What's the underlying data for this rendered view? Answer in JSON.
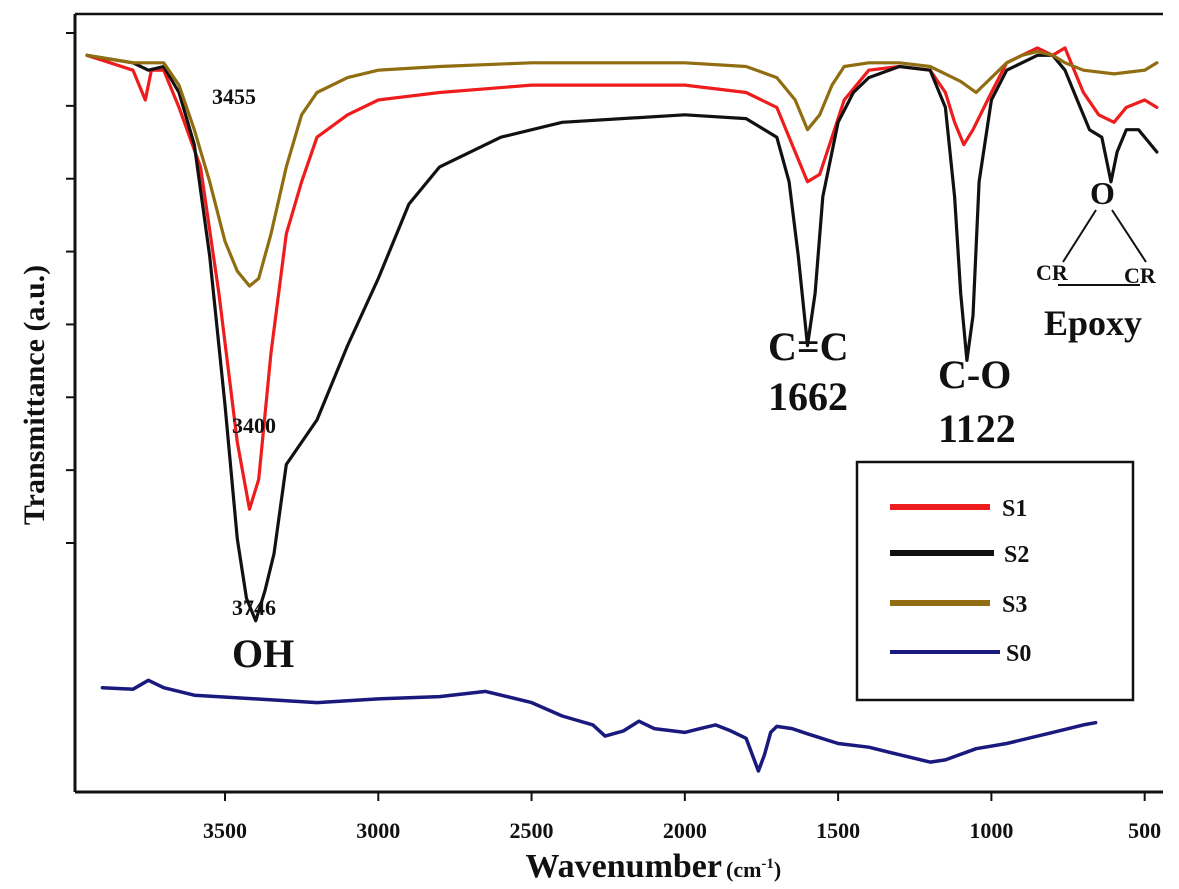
{
  "chart_data": {
    "type": "line",
    "xlabel": "Wavenumber",
    "xlabel_unit": "(cm",
    "xlabel_unit_sup": "-1",
    "xlabel_unit_close": ")",
    "ylabel": "Transmittance (a.u.)",
    "x_reversed": true,
    "xlim": [
      3950,
      450
    ],
    "ylim": [
      0,
      100
    ],
    "x_ticks": [
      3500,
      3000,
      2500,
      2000,
      1500,
      1000,
      500
    ],
    "y_tick_count": 8,
    "grid": false,
    "legend_position": "bottom-right",
    "series": [
      {
        "name": "S1",
        "color": "#ee1c1c",
        "points": [
          [
            3950,
            97
          ],
          [
            3800,
            95
          ],
          [
            3760,
            91
          ],
          [
            3740,
            95
          ],
          [
            3700,
            95
          ],
          [
            3650,
            90
          ],
          [
            3580,
            82
          ],
          [
            3520,
            65
          ],
          [
            3460,
            45
          ],
          [
            3420,
            36
          ],
          [
            3390,
            40
          ],
          [
            3350,
            57
          ],
          [
            3300,
            73
          ],
          [
            3250,
            80
          ],
          [
            3200,
            86
          ],
          [
            3100,
            89
          ],
          [
            3000,
            91
          ],
          [
            2800,
            92
          ],
          [
            2500,
            93
          ],
          [
            2000,
            93
          ],
          [
            1800,
            92
          ],
          [
            1700,
            90
          ],
          [
            1640,
            84
          ],
          [
            1600,
            80
          ],
          [
            1560,
            81
          ],
          [
            1520,
            86
          ],
          [
            1480,
            91
          ],
          [
            1400,
            95
          ],
          [
            1300,
            95.5
          ],
          [
            1200,
            95
          ],
          [
            1150,
            92
          ],
          [
            1120,
            88
          ],
          [
            1090,
            85
          ],
          [
            1060,
            87
          ],
          [
            1000,
            92
          ],
          [
            950,
            96
          ],
          [
            900,
            97
          ],
          [
            850,
            98
          ],
          [
            800,
            97
          ],
          [
            760,
            98
          ],
          [
            740,
            96
          ],
          [
            700,
            92
          ],
          [
            650,
            89
          ],
          [
            600,
            88
          ],
          [
            560,
            90
          ],
          [
            500,
            91
          ],
          [
            460,
            90
          ]
        ]
      },
      {
        "name": "S2",
        "color": "#111111",
        "points": [
          [
            3950,
            97
          ],
          [
            3800,
            96
          ],
          [
            3750,
            95
          ],
          [
            3700,
            95.5
          ],
          [
            3650,
            92
          ],
          [
            3600,
            85
          ],
          [
            3550,
            70
          ],
          [
            3500,
            50
          ],
          [
            3460,
            32
          ],
          [
            3430,
            24
          ],
          [
            3400,
            21
          ],
          [
            3370,
            25
          ],
          [
            3340,
            30
          ],
          [
            3300,
            42
          ],
          [
            3200,
            48
          ],
          [
            3100,
            58
          ],
          [
            3000,
            67
          ],
          [
            2900,
            77
          ],
          [
            2800,
            82
          ],
          [
            2600,
            86
          ],
          [
            2400,
            88
          ],
          [
            2000,
            89
          ],
          [
            1800,
            88.5
          ],
          [
            1700,
            86
          ],
          [
            1660,
            80
          ],
          [
            1630,
            70
          ],
          [
            1600,
            58
          ],
          [
            1575,
            65
          ],
          [
            1550,
            78
          ],
          [
            1500,
            88
          ],
          [
            1450,
            92
          ],
          [
            1400,
            94
          ],
          [
            1300,
            95.5
          ],
          [
            1200,
            95
          ],
          [
            1150,
            90
          ],
          [
            1120,
            78
          ],
          [
            1100,
            65
          ],
          [
            1080,
            56
          ],
          [
            1060,
            62
          ],
          [
            1040,
            80
          ],
          [
            1000,
            91
          ],
          [
            950,
            95
          ],
          [
            900,
            96
          ],
          [
            850,
            97
          ],
          [
            800,
            97
          ],
          [
            760,
            95
          ],
          [
            720,
            91
          ],
          [
            680,
            87
          ],
          [
            640,
            86
          ],
          [
            610,
            80
          ],
          [
            590,
            84
          ],
          [
            560,
            87
          ],
          [
            520,
            87
          ],
          [
            480,
            85
          ],
          [
            460,
            84
          ]
        ]
      },
      {
        "name": "S3",
        "color": "#8f6d10",
        "points": [
          [
            3950,
            97
          ],
          [
            3800,
            96
          ],
          [
            3700,
            96
          ],
          [
            3650,
            93
          ],
          [
            3600,
            87
          ],
          [
            3550,
            80
          ],
          [
            3500,
            72
          ],
          [
            3460,
            68
          ],
          [
            3420,
            66
          ],
          [
            3390,
            67
          ],
          [
            3350,
            73
          ],
          [
            3300,
            82
          ],
          [
            3250,
            89
          ],
          [
            3200,
            92
          ],
          [
            3100,
            94
          ],
          [
            3000,
            95
          ],
          [
            2800,
            95.5
          ],
          [
            2500,
            96
          ],
          [
            2000,
            96
          ],
          [
            1800,
            95.5
          ],
          [
            1700,
            94
          ],
          [
            1640,
            91
          ],
          [
            1600,
            87
          ],
          [
            1560,
            89
          ],
          [
            1520,
            93
          ],
          [
            1480,
            95.5
          ],
          [
            1400,
            96
          ],
          [
            1300,
            96
          ],
          [
            1200,
            95.5
          ],
          [
            1150,
            94.5
          ],
          [
            1100,
            93.5
          ],
          [
            1050,
            92
          ],
          [
            1000,
            94
          ],
          [
            950,
            96
          ],
          [
            900,
            97
          ],
          [
            850,
            97.5
          ],
          [
            800,
            97
          ],
          [
            760,
            96
          ],
          [
            700,
            95
          ],
          [
            600,
            94.5
          ],
          [
            500,
            95
          ],
          [
            460,
            96
          ]
        ]
      },
      {
        "name": "S0",
        "color": "#1a1a7e",
        "points": [
          [
            3900,
            12
          ],
          [
            3800,
            11.8
          ],
          [
            3750,
            13
          ],
          [
            3700,
            12
          ],
          [
            3600,
            11
          ],
          [
            3400,
            10.5
          ],
          [
            3200,
            10
          ],
          [
            3000,
            10.5
          ],
          [
            2800,
            10.8
          ],
          [
            2650,
            11.5
          ],
          [
            2500,
            10
          ],
          [
            2400,
            8.2
          ],
          [
            2300,
            7
          ],
          [
            2260,
            5.5
          ],
          [
            2200,
            6.2
          ],
          [
            2150,
            7.5
          ],
          [
            2100,
            6.5
          ],
          [
            2000,
            6
          ],
          [
            1950,
            6.5
          ],
          [
            1900,
            7
          ],
          [
            1850,
            6.2
          ],
          [
            1800,
            5.2
          ],
          [
            1780,
            3
          ],
          [
            1760,
            0.8
          ],
          [
            1740,
            3
          ],
          [
            1720,
            6
          ],
          [
            1700,
            6.8
          ],
          [
            1650,
            6.5
          ],
          [
            1600,
            5.8
          ],
          [
            1500,
            4.5
          ],
          [
            1400,
            4
          ],
          [
            1300,
            3
          ],
          [
            1200,
            2
          ],
          [
            1150,
            2.3
          ],
          [
            1050,
            3.8
          ],
          [
            950,
            4.5
          ],
          [
            800,
            6
          ],
          [
            700,
            7
          ],
          [
            660,
            7.3
          ]
        ]
      }
    ],
    "annotations": {
      "s3_peak": "3455",
      "s1_peak": "3400",
      "s2_peak": "3746",
      "oh": "OH",
      "cc_name": "C=C",
      "cc_value": "1662",
      "co_name": "C-O",
      "co_value": "1122",
      "epoxy_o": "O",
      "epoxy_cr_left": "CR",
      "epoxy_cr_right": "CR",
      "epoxy_label": "Epoxy"
    }
  }
}
